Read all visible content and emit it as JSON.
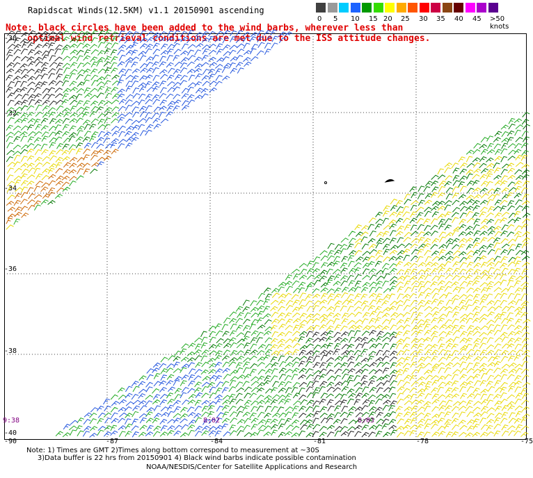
{
  "title": "Rapidscat Winds(12.5KM) v1.1 20150901 ascending",
  "note": "Note: black circles have been added to the wind barbs, wherever less than\n    optimal wind retrieval conditions are met due to the ISS attitude changes.",
  "color_scale": {
    "labels": [
      "0",
      "5",
      "10",
      "15",
      "20",
      "25",
      "30",
      "35",
      "40",
      "45",
      ">50 knots"
    ],
    "colors": [
      "#404040",
      "#9a9a9a",
      "#00ccff",
      "#1e64ff",
      "#009900",
      "#33dd00",
      "#ffff00",
      "#ffaa00",
      "#ff5500",
      "#ff0000",
      "#cc0044",
      "#8b4513",
      "#660000",
      "#ff00ff",
      "#aa00cc",
      "#5a0090"
    ]
  },
  "lat_labels": [
    "-30",
    "-32",
    "-34",
    "-36",
    "-38",
    "-40"
  ],
  "lon_labels": [
    "-90",
    "-87",
    "-84",
    "-81",
    "-78",
    "-75"
  ],
  "time_labels": [
    "9:38",
    "8:02",
    "8:03"
  ],
  "footnote": "Note: 1) Times are GMT 2)Times along bottom correspond to measurement at ~30S\n     3)Data buffer is 22 hrs from 20150901 4) Black wind barbs indicate possible contamination",
  "credit": "NOAA/NESDIS/Center for Satellite Applications and Research"
}
